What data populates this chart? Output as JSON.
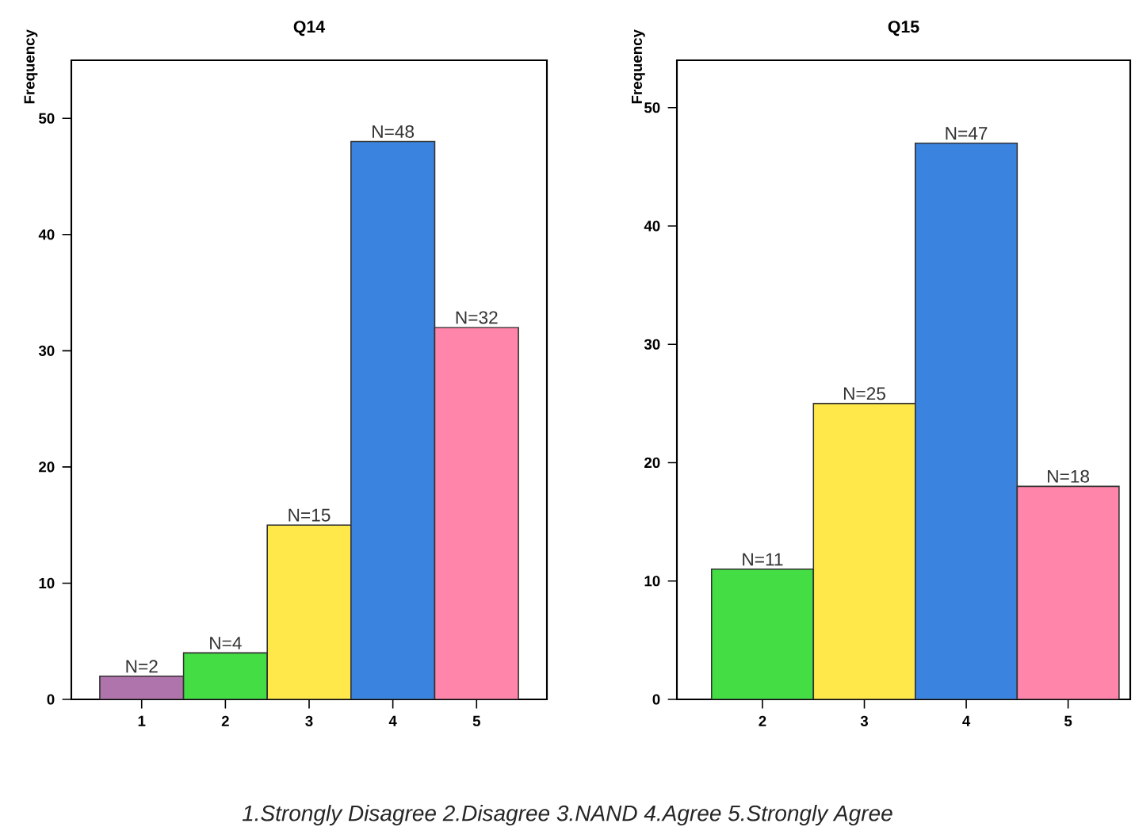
{
  "chart_data": [
    {
      "type": "bar",
      "title": "Q14",
      "ylabel": "Frequency",
      "categories": [
        "1",
        "2",
        "3",
        "4",
        "5"
      ],
      "values": [
        2,
        4,
        15,
        48,
        32
      ],
      "colors": [
        "#b074ac",
        "#44dd44",
        "#ffe84a",
        "#3a84e0",
        "#ff85aa"
      ],
      "value_labels": [
        "N=2",
        "N=4",
        "N=15",
        "N=48",
        "N=32"
      ],
      "ylim": [
        0,
        55
      ],
      "yticks": [
        0,
        10,
        20,
        30,
        40,
        50
      ],
      "annotations": [
        "1.Strongly Disagree 2.Disagree 3.NAND 4.Agree 5.Strongly Agree"
      ]
    },
    {
      "type": "bar",
      "title": "Q15",
      "ylabel": "Frequency",
      "categories": [
        "2",
        "3",
        "4",
        "5"
      ],
      "values": [
        11,
        25,
        47,
        18
      ],
      "colors": [
        "#44dd44",
        "#ffe84a",
        "#3a84e0",
        "#ff85aa"
      ],
      "value_labels": [
        "N=11",
        "N=25",
        "N=47",
        "N=18"
      ],
      "ylim": [
        0,
        54
      ],
      "yticks": [
        0,
        10,
        20,
        30,
        40,
        50
      ]
    }
  ]
}
